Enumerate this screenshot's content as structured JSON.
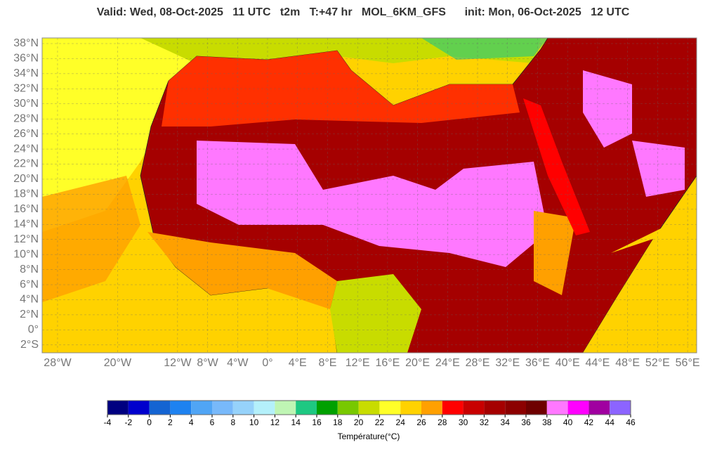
{
  "header": {
    "title": "Valid: Wed, 08-Oct-2025   11 UTC   t2m   T:+47 hr   MOL_6KM_GFS      init: Mon, 06-Oct-2025   12 UTC"
  },
  "map": {
    "lat_ticks": [
      {
        "value": 38,
        "label": "38°N"
      },
      {
        "value": 36,
        "label": "36°N"
      },
      {
        "value": 34,
        "label": "34°N"
      },
      {
        "value": 32,
        "label": "32°N"
      },
      {
        "value": 30,
        "label": "30°N"
      },
      {
        "value": 28,
        "label": "28°N"
      },
      {
        "value": 26,
        "label": "26°N"
      },
      {
        "value": 24,
        "label": "24°N"
      },
      {
        "value": 22,
        "label": "22°N"
      },
      {
        "value": 20,
        "label": "20°N"
      },
      {
        "value": 18,
        "label": "18°N"
      },
      {
        "value": 16,
        "label": "16°N"
      },
      {
        "value": 14,
        "label": "14°N"
      },
      {
        "value": 12,
        "label": "12°N"
      },
      {
        "value": 10,
        "label": "10°N"
      },
      {
        "value": 8,
        "label": "8°N"
      },
      {
        "value": 6,
        "label": "6°N"
      },
      {
        "value": 4,
        "label": "4°N"
      },
      {
        "value": 2,
        "label": "2°N"
      },
      {
        "value": 0,
        "label": "0°"
      },
      {
        "value": -2,
        "label": "2°S"
      }
    ],
    "lon_ticks": [
      {
        "value": -28,
        "label": "28°W"
      },
      {
        "value": -20,
        "label": "20°W"
      },
      {
        "value": -12,
        "label": "12°W"
      },
      {
        "value": -8,
        "label": "8°W"
      },
      {
        "value": -4,
        "label": "4°W"
      },
      {
        "value": 0,
        "label": "0°"
      },
      {
        "value": 4,
        "label": "4°E"
      },
      {
        "value": 8,
        "label": "8°E"
      },
      {
        "value": 12,
        "label": "12°E"
      },
      {
        "value": 16,
        "label": "16°E"
      },
      {
        "value": 20,
        "label": "20°E"
      },
      {
        "value": 24,
        "label": "24°E"
      },
      {
        "value": 28,
        "label": "28°E"
      },
      {
        "value": 32,
        "label": "32°E"
      },
      {
        "value": 36,
        "label": "36°E"
      },
      {
        "value": 40,
        "label": "40°E"
      },
      {
        "value": 44,
        "label": "44°E"
      },
      {
        "value": 48,
        "label": "48°E"
      },
      {
        "value": 52,
        "label": "52°E"
      },
      {
        "value": 56,
        "label": "56°E"
      }
    ]
  },
  "colorbar": {
    "ticks": [
      -4,
      -2,
      0,
      2,
      4,
      6,
      8,
      10,
      12,
      14,
      16,
      18,
      20,
      22,
      24,
      26,
      28,
      30,
      32,
      34,
      36,
      38,
      40,
      42,
      44,
      46
    ],
    "colors": [
      "#000080",
      "#0000cd",
      "#1464d2",
      "#1e82f0",
      "#50a5f5",
      "#78b9fa",
      "#96d2fa",
      "#b4f0fa",
      "#bff5b4",
      "#1ec882",
      "#00a000",
      "#78c800",
      "#c8dc00",
      "#ffff28",
      "#ffd200",
      "#ffa000",
      "#ff0000",
      "#c80000",
      "#a50000",
      "#8c0000",
      "#6e0000",
      "#ff78ff",
      "#ff00ff",
      "#a000a0",
      "#8c64ff"
    ],
    "label": "Température(°C)"
  }
}
